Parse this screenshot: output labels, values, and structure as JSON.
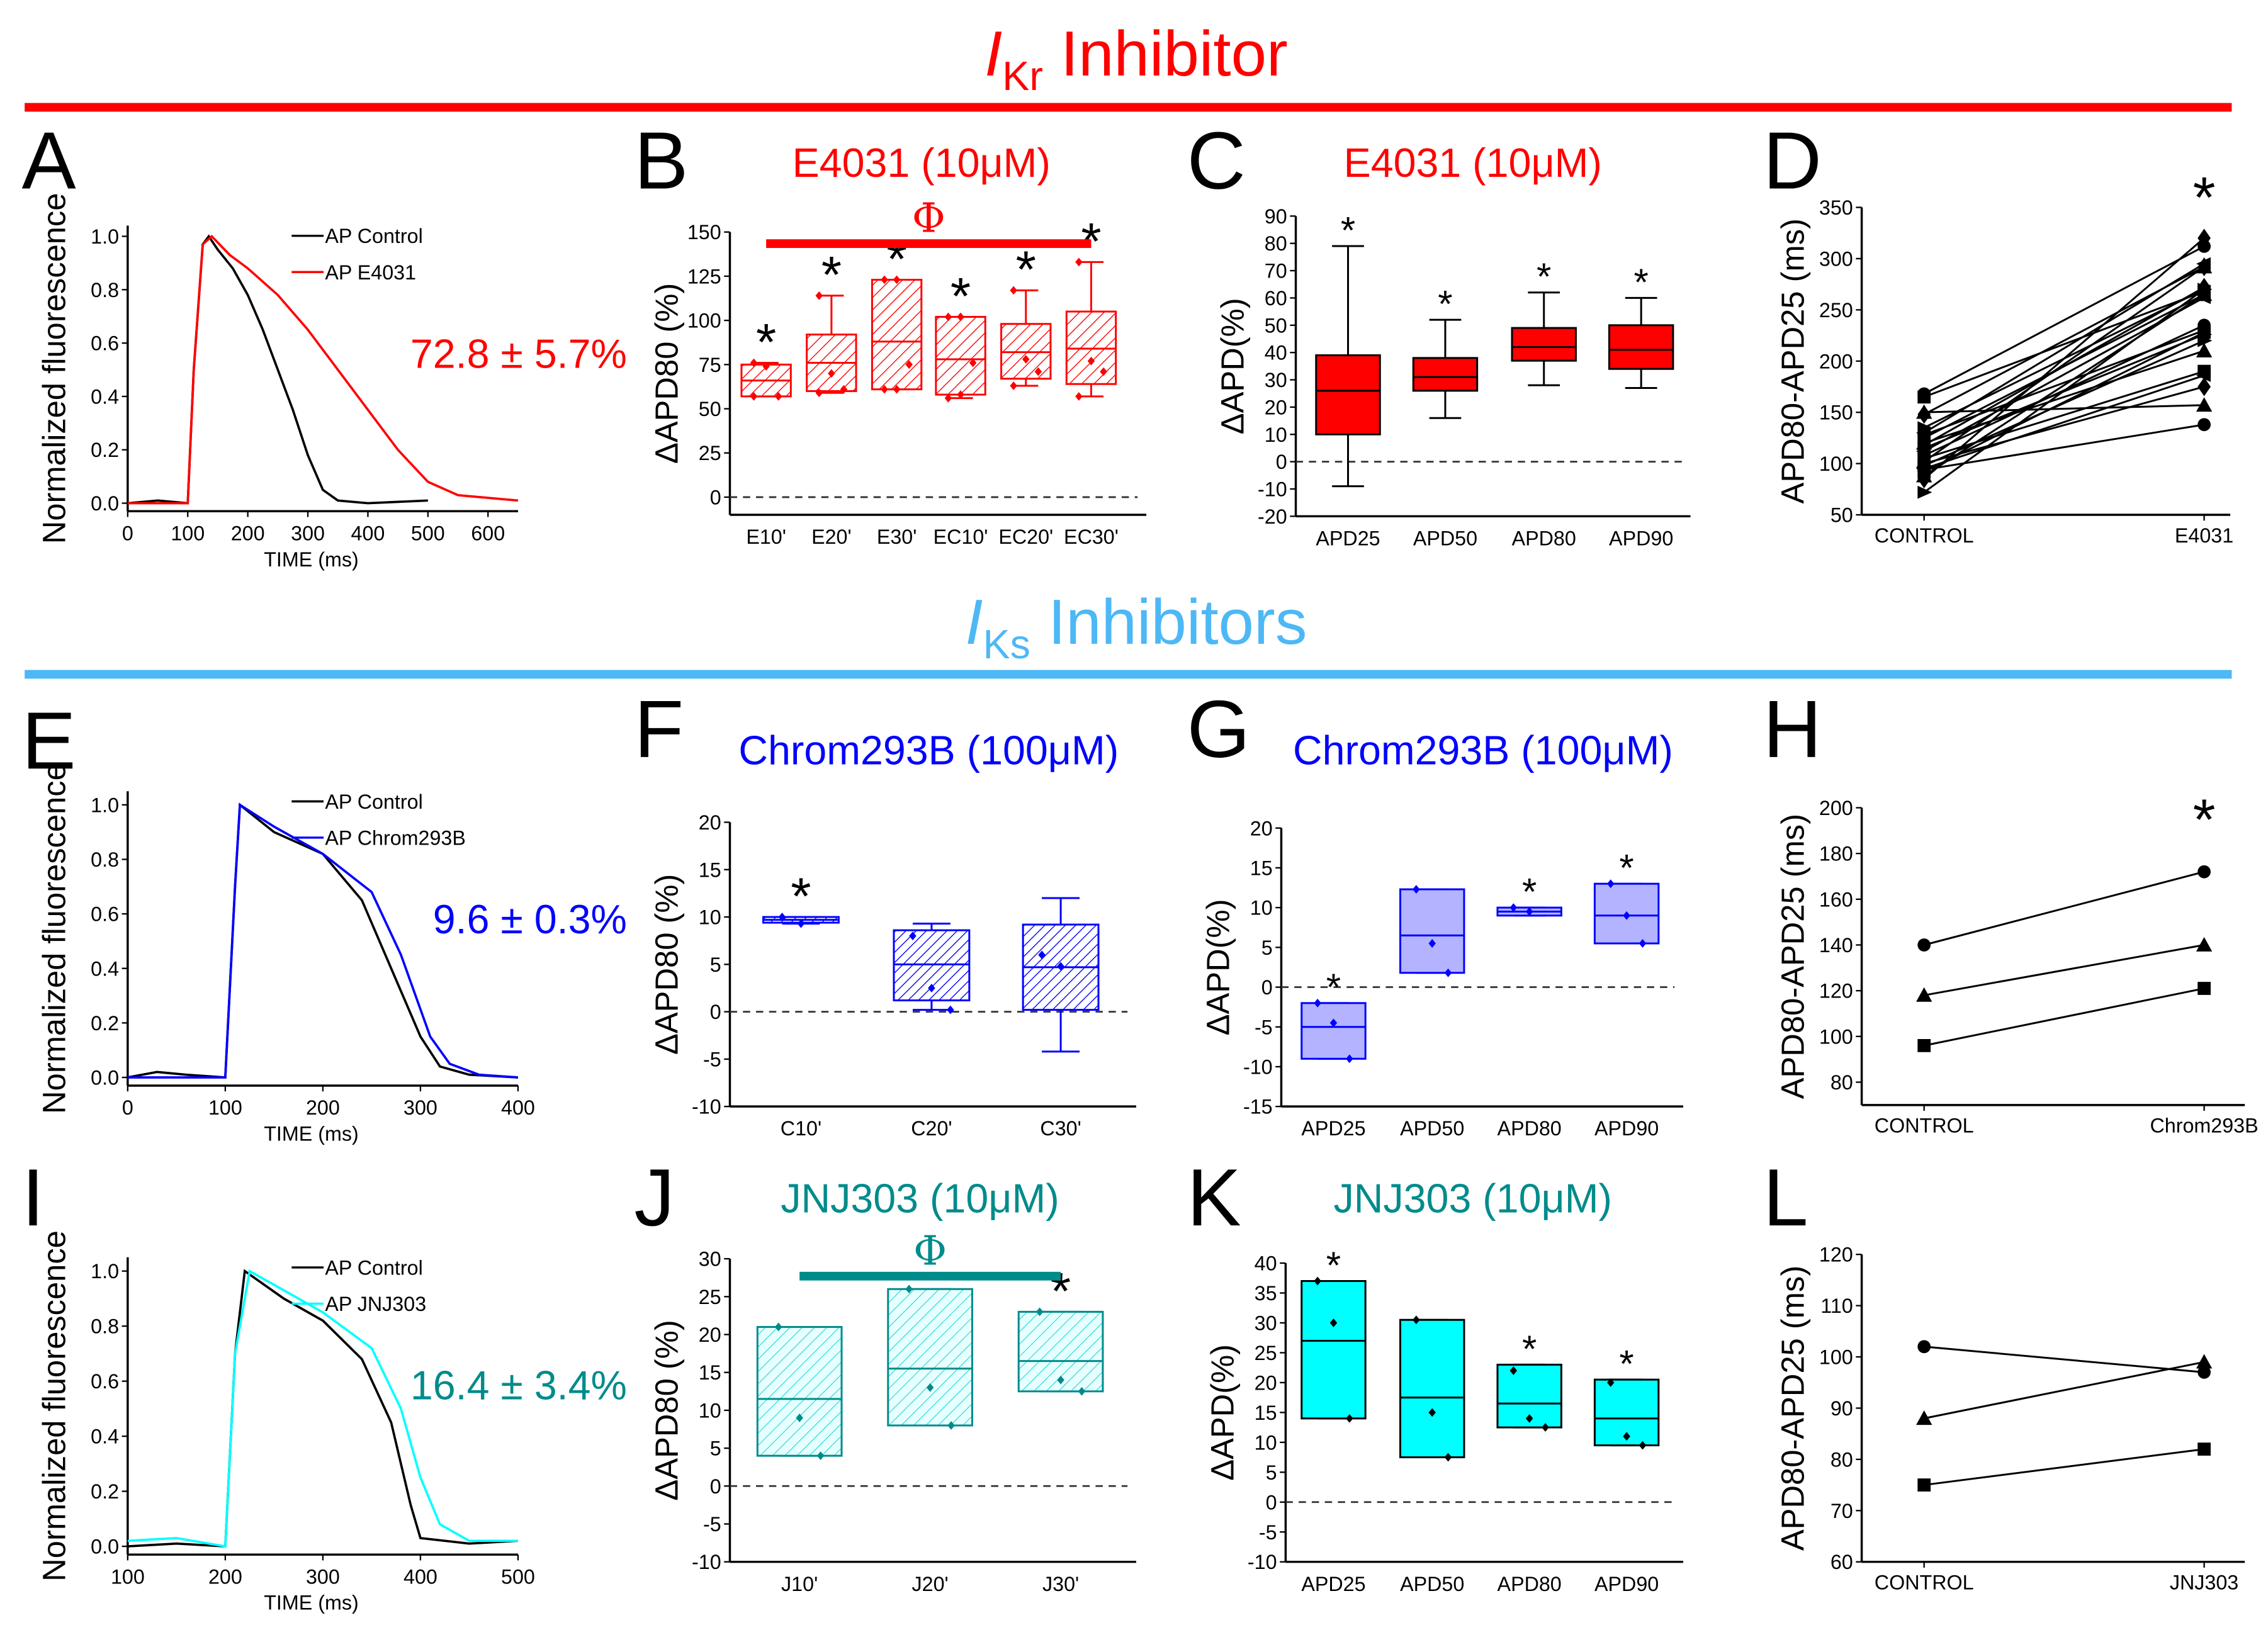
{
  "headers": {
    "ikr": {
      "symbol": "I",
      "sub": "Kr",
      "text": " Inhibitor",
      "color": "#ff0000"
    },
    "iks": {
      "symbol": "I",
      "sub": "Ks",
      "text": " Inhibitors",
      "color": "#4db8f5"
    }
  },
  "colors": {
    "red": "#ff0000",
    "blue": "#0000ff",
    "teal": "#008b8b",
    "cyan": "#00ffff",
    "lightblue": "#b3b3ff"
  },
  "chart_data": [
    {
      "id": "A",
      "letter": "A",
      "type": "line",
      "xlabel": "TIME (ms)",
      "ylabel": "Normalized fluorescence",
      "xlim": [
        0,
        650
      ],
      "ylim": [
        -0.03,
        1.04
      ],
      "xticks": [
        0,
        100,
        200,
        300,
        400,
        500,
        600
      ],
      "yticks": [
        0.0,
        0.2,
        0.4,
        0.6,
        0.8,
        1.0
      ],
      "annotation": "72.8 ± 5.7%",
      "annotation_color": "#ff0000",
      "series": [
        {
          "name": "AP Control",
          "color": "#000000",
          "points": [
            [
              0,
              0
            ],
            [
              50,
              0.01
            ],
            [
              100,
              0
            ],
            [
              110,
              0.5
            ],
            [
              125,
              0.97
            ],
            [
              135,
              1.0
            ],
            [
              150,
              0.95
            ],
            [
              175,
              0.88
            ],
            [
              200,
              0.78
            ],
            [
              225,
              0.65
            ],
            [
              250,
              0.5
            ],
            [
              275,
              0.35
            ],
            [
              300,
              0.18
            ],
            [
              325,
              0.05
            ],
            [
              350,
              0.01
            ],
            [
              400,
              0
            ],
            [
              500,
              0.01
            ]
          ]
        },
        {
          "name": "AP E4031",
          "color": "#ff0000",
          "points": [
            [
              0,
              0
            ],
            [
              100,
              0
            ],
            [
              110,
              0.5
            ],
            [
              125,
              0.97
            ],
            [
              140,
              1.0
            ],
            [
              170,
              0.93
            ],
            [
              200,
              0.88
            ],
            [
              250,
              0.78
            ],
            [
              300,
              0.65
            ],
            [
              350,
              0.5
            ],
            [
              400,
              0.35
            ],
            [
              450,
              0.2
            ],
            [
              500,
              0.08
            ],
            [
              550,
              0.03
            ],
            [
              600,
              0.02
            ],
            [
              650,
              0.01
            ]
          ]
        }
      ]
    },
    {
      "id": "B",
      "letter": "B",
      "type": "box",
      "title": "E4031 (10μM)",
      "title_color": "#ff0000",
      "ylabel": "ΔAPD80 (%)",
      "ylim": [
        -10,
        150
      ],
      "yticks": [
        0,
        25,
        50,
        75,
        100,
        125,
        150
      ],
      "significance_bar": "Φ",
      "style": "hatch-red",
      "boxes": [
        {
          "cat": "E10'",
          "min": 57,
          "q1": 57,
          "median": 66,
          "q3": 75,
          "max": 76,
          "points": [
            76,
            74,
            57,
            57
          ],
          "star": true
        },
        {
          "cat": "E20'",
          "min": 59,
          "q1": 60,
          "median": 76,
          "q3": 92,
          "max": 114,
          "points": [
            114,
            70,
            61,
            59
          ],
          "star": true
        },
        {
          "cat": "E30'",
          "min": 61,
          "q1": 61,
          "median": 88,
          "q3": 123,
          "max": 123,
          "points": [
            123,
            123,
            75,
            61,
            61
          ],
          "star": true
        },
        {
          "cat": "EC10'",
          "min": 56,
          "q1": 58,
          "median": 78,
          "q3": 102,
          "max": 102,
          "points": [
            102,
            102,
            76,
            56,
            58
          ],
          "star": true
        },
        {
          "cat": "EC20'",
          "min": 63,
          "q1": 67,
          "median": 82,
          "q3": 98,
          "max": 117,
          "points": [
            117,
            78,
            71,
            63
          ],
          "star": true
        },
        {
          "cat": "EC30'",
          "min": 57,
          "q1": 64,
          "median": 84,
          "q3": 105,
          "max": 133,
          "points": [
            133,
            77,
            71,
            57
          ],
          "star": true
        }
      ]
    },
    {
      "id": "C",
      "letter": "C",
      "type": "box",
      "title": "E4031 (10μM)",
      "title_color": "#ff0000",
      "ylabel": "ΔAPD(%)",
      "ylim": [
        -20,
        90
      ],
      "yticks": [
        -20,
        -10,
        0,
        10,
        20,
        30,
        40,
        50,
        60,
        70,
        80,
        90
      ],
      "style": "solid-red",
      "boxes": [
        {
          "cat": "APD25",
          "min": -9,
          "q1": 10,
          "median": 26,
          "q3": 39,
          "max": 79,
          "points": [],
          "star": true
        },
        {
          "cat": "APD50",
          "min": 16,
          "q1": 26,
          "median": 31,
          "q3": 38,
          "max": 52,
          "points": [],
          "star": true
        },
        {
          "cat": "APD80",
          "min": 28,
          "q1": 37,
          "median": 42,
          "q3": 49,
          "max": 62,
          "points": [],
          "star": true
        },
        {
          "cat": "APD90",
          "min": 27,
          "q1": 34,
          "median": 41,
          "q3": 50,
          "max": 60,
          "points": [],
          "star": true
        }
      ]
    },
    {
      "id": "D",
      "letter": "D",
      "type": "paired",
      "ylabel": "APD80-APD25 (ms)",
      "ylim": [
        50,
        350
      ],
      "yticks": [
        50,
        100,
        150,
        200,
        250,
        300,
        350
      ],
      "categories": [
        "CONTROL",
        "E4031"
      ],
      "star": true,
      "pairs": [
        [
          168,
          312
        ],
        [
          165,
          268
        ],
        [
          150,
          157
        ],
        [
          148,
          292
        ],
        [
          135,
          270
        ],
        [
          130,
          295
        ],
        [
          128,
          230
        ],
        [
          125,
          265
        ],
        [
          120,
          210
        ],
        [
          118,
          272
        ],
        [
          115,
          226
        ],
        [
          112,
          262
        ],
        [
          108,
          235
        ],
        [
          105,
          190
        ],
        [
          102,
          292
        ],
        [
          100,
          175
        ],
        [
          98,
          220
        ],
        [
          95,
          186
        ],
        [
          94,
          138
        ],
        [
          92,
          228
        ],
        [
          88,
          265
        ],
        [
          85,
          320
        ],
        [
          72,
          270
        ]
      ]
    },
    {
      "id": "E",
      "letter": "E",
      "type": "line",
      "xlabel": "TIME (ms)",
      "ylabel": "Normalized fluorescence",
      "xlim": [
        0,
        400
      ],
      "ylim": [
        -0.03,
        1.05
      ],
      "xticks": [
        0,
        100,
        200,
        300,
        400
      ],
      "yticks": [
        0.0,
        0.2,
        0.4,
        0.6,
        0.8,
        1.0
      ],
      "annotation": "9.6 ± 0.3%",
      "annotation_color": "#0000ff",
      "series": [
        {
          "name": "AP Control",
          "color": "#000000",
          "points": [
            [
              0,
              0
            ],
            [
              30,
              0.02
            ],
            [
              60,
              0.01
            ],
            [
              100,
              0
            ],
            [
              110,
              0.7
            ],
            [
              115,
              1.0
            ],
            [
              150,
              0.9
            ],
            [
              200,
              0.82
            ],
            [
              240,
              0.65
            ],
            [
              270,
              0.4
            ],
            [
              300,
              0.15
            ],
            [
              320,
              0.04
            ],
            [
              350,
              0.01
            ],
            [
              400,
              0
            ]
          ]
        },
        {
          "name": "AP Chrom293B",
          "color": "#0000ff",
          "points": [
            [
              0,
              0
            ],
            [
              100,
              0
            ],
            [
              110,
              0.7
            ],
            [
              115,
              1.0
            ],
            [
              150,
              0.92
            ],
            [
              200,
              0.82
            ],
            [
              250,
              0.68
            ],
            [
              280,
              0.45
            ],
            [
              310,
              0.15
            ],
            [
              330,
              0.05
            ],
            [
              360,
              0.01
            ],
            [
              400,
              0
            ]
          ]
        }
      ]
    },
    {
      "id": "F",
      "letter": "F",
      "type": "box",
      "title": "Chrom293B (100μM)",
      "title_color": "#0000ff",
      "ylabel": "ΔAPD80 (%)",
      "ylim": [
        -10,
        20
      ],
      "yticks": [
        -10,
        -5,
        0,
        5,
        10,
        15,
        20
      ],
      "style": "hatch-blue",
      "boxes": [
        {
          "cat": "C10'",
          "min": 9.3,
          "q1": 9.4,
          "median": 9.7,
          "q3": 10,
          "max": 10,
          "points": [
            10,
            9.3
          ],
          "star": true
        },
        {
          "cat": "C20'",
          "min": 0.2,
          "q1": 1.2,
          "median": 5,
          "q3": 8.6,
          "max": 9.3,
          "points": [
            8,
            2.5,
            0.2
          ],
          "star": false
        },
        {
          "cat": "C30'",
          "min": -4.2,
          "q1": 0.2,
          "median": 4.7,
          "q3": 9.2,
          "max": 12,
          "points": [
            6,
            4.8
          ],
          "star": false
        }
      ]
    },
    {
      "id": "G",
      "letter": "G",
      "type": "box",
      "title": "Chrom293B (100μM)",
      "title_color": "#0000ff",
      "ylabel": "ΔAPD(%)",
      "ylim": [
        -15,
        20
      ],
      "yticks": [
        -15,
        -10,
        -5,
        0,
        5,
        10,
        15,
        20
      ],
      "style": "solid-lightblue",
      "boxes": [
        {
          "cat": "APD25",
          "min": -9,
          "q1": -9,
          "median": -5,
          "q3": -2,
          "max": -2,
          "points": [
            -2,
            -4.5,
            -9
          ],
          "star": true
        },
        {
          "cat": "APD50",
          "min": 1.8,
          "q1": 1.8,
          "median": 6.5,
          "q3": 12.3,
          "max": 12.3,
          "points": [
            12.3,
            5.5,
            1.8
          ],
          "star": false
        },
        {
          "cat": "APD80",
          "min": 9,
          "q1": 9,
          "median": 9.5,
          "q3": 10,
          "max": 10,
          "points": [
            10,
            9.5
          ],
          "star": true
        },
        {
          "cat": "APD90",
          "min": 5.5,
          "q1": 5.5,
          "median": 9,
          "q3": 13,
          "max": 13,
          "points": [
            13,
            9,
            5.5
          ],
          "star": true
        }
      ]
    },
    {
      "id": "H",
      "letter": "H",
      "type": "paired",
      "ylabel": "APD80-APD25 (ms)",
      "ylim": [
        70,
        200
      ],
      "yticks": [
        80,
        100,
        120,
        140,
        160,
        180,
        200
      ],
      "categories": [
        "CONTROL",
        "Chrom293B"
      ],
      "star": true,
      "pairs": [
        [
          140,
          172
        ],
        [
          118,
          140
        ],
        [
          96,
          121
        ]
      ]
    },
    {
      "id": "I",
      "letter": "I",
      "type": "line",
      "xlabel": "TIME (ms)",
      "ylabel": "Normalized fluorescence",
      "xlim": [
        100,
        500
      ],
      "ylim": [
        -0.03,
        1.05
      ],
      "xticks": [
        100,
        200,
        300,
        400,
        500
      ],
      "yticks": [
        0.0,
        0.2,
        0.4,
        0.6,
        0.8,
        1.0
      ],
      "annotation": "16.4 ± 3.4%",
      "annotation_color": "#008b8b",
      "series": [
        {
          "name": "AP Control",
          "color": "#000000",
          "points": [
            [
              100,
              0
            ],
            [
              150,
              0.01
            ],
            [
              200,
              0
            ],
            [
              210,
              0.7
            ],
            [
              220,
              1.0
            ],
            [
              260,
              0.9
            ],
            [
              300,
              0.82
            ],
            [
              340,
              0.68
            ],
            [
              370,
              0.45
            ],
            [
              390,
              0.15
            ],
            [
              400,
              0.03
            ],
            [
              450,
              0.01
            ],
            [
              500,
              0.02
            ]
          ]
        },
        {
          "name": "AP JNJ303",
          "color": "#00ffff",
          "points": [
            [
              100,
              0.02
            ],
            [
              150,
              0.03
            ],
            [
              200,
              0
            ],
            [
              210,
              0.7
            ],
            [
              225,
              1.0
            ],
            [
              260,
              0.93
            ],
            [
              300,
              0.85
            ],
            [
              350,
              0.72
            ],
            [
              380,
              0.5
            ],
            [
              400,
              0.25
            ],
            [
              420,
              0.08
            ],
            [
              450,
              0.02
            ],
            [
              500,
              0.02
            ]
          ]
        }
      ]
    },
    {
      "id": "J",
      "letter": "J",
      "type": "box",
      "title": "JNJ303 (10μM)",
      "title_color": "#008b8b",
      "ylabel": "ΔAPD80 (%)",
      "ylim": [
        -10,
        30
      ],
      "yticks": [
        -10,
        -5,
        0,
        5,
        10,
        15,
        20,
        25,
        30
      ],
      "significance_bar": "Φ",
      "style": "hatch-cyan",
      "boxes": [
        {
          "cat": "J10'",
          "min": 4,
          "q1": 4,
          "median": 11.5,
          "q3": 21,
          "max": 21,
          "points": [
            21,
            9,
            4
          ],
          "star": false
        },
        {
          "cat": "J20'",
          "min": 8,
          "q1": 8,
          "median": 15.5,
          "q3": 26,
          "max": 26,
          "points": [
            26,
            13,
            8
          ],
          "star": false
        },
        {
          "cat": "J30'",
          "min": 12.5,
          "q1": 12.5,
          "median": 16.5,
          "q3": 23,
          "max": 23,
          "points": [
            23,
            14,
            12.5
          ],
          "star": true
        }
      ]
    },
    {
      "id": "K",
      "letter": "K",
      "type": "box",
      "title": "JNJ303 (10μM)",
      "title_color": "#008b8b",
      "ylabel": "ΔAPD(%)",
      "ylim": [
        -10,
        40
      ],
      "yticks": [
        -10,
        -5,
        0,
        5,
        10,
        15,
        20,
        25,
        30,
        35,
        40
      ],
      "style": "solid-cyan",
      "boxes": [
        {
          "cat": "APD25",
          "min": 14,
          "q1": 14,
          "median": 27,
          "q3": 37,
          "max": 37,
          "points": [
            37,
            30,
            14
          ],
          "star": true
        },
        {
          "cat": "APD50",
          "min": 7.5,
          "q1": 7.5,
          "median": 17.5,
          "q3": 30.5,
          "max": 30.5,
          "points": [
            30.5,
            15,
            7.5
          ],
          "star": false
        },
        {
          "cat": "APD80",
          "min": 12.5,
          "q1": 12.5,
          "median": 16.5,
          "q3": 23,
          "max": 23,
          "points": [
            22,
            14,
            12.5
          ],
          "star": true
        },
        {
          "cat": "APD90",
          "min": 9.5,
          "q1": 9.5,
          "median": 14,
          "q3": 20.5,
          "max": 20.5,
          "points": [
            20,
            11,
            9.5
          ],
          "star": true
        }
      ]
    },
    {
      "id": "L",
      "letter": "L",
      "type": "paired",
      "ylabel": "APD80-APD25 (ms)",
      "ylim": [
        60,
        120
      ],
      "yticks": [
        60,
        70,
        80,
        90,
        100,
        110,
        120
      ],
      "categories": [
        "CONTROL",
        "JNJ303"
      ],
      "star": false,
      "pairs": [
        [
          102,
          97
        ],
        [
          88,
          99
        ],
        [
          75,
          82
        ]
      ]
    }
  ]
}
